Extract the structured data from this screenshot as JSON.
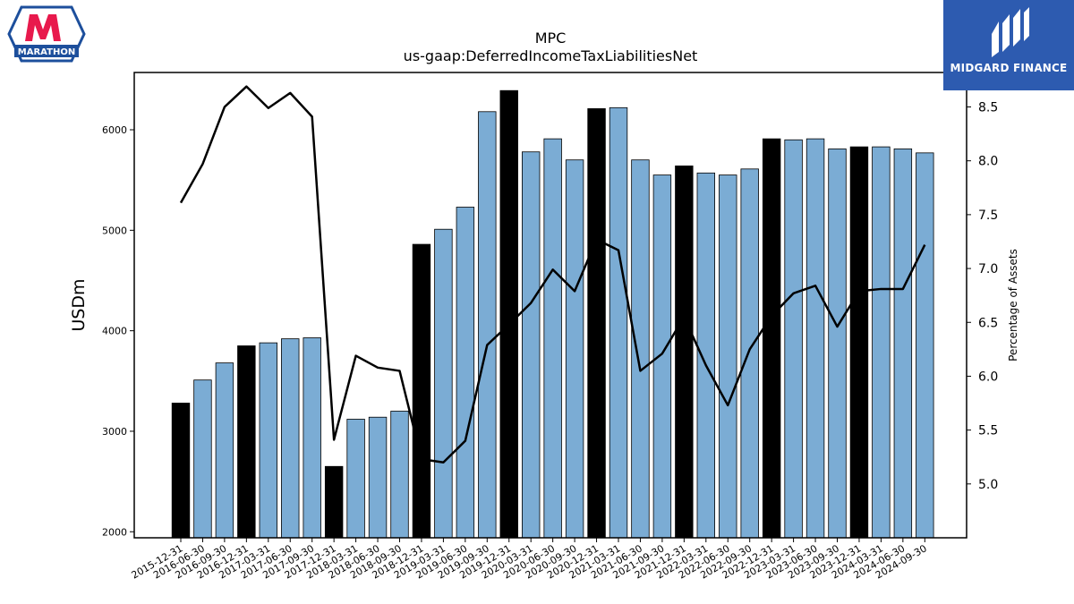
{
  "logos": {
    "left_brand_text": "MARATHON",
    "right_brand_text": "MIDGARD FINANCE"
  },
  "chart_data": {
    "type": "bar",
    "title": "MPC",
    "subtitle": "us-gaap:DeferredIncomeTaxLiabilitiesNet",
    "ylabel": "USDm",
    "y2label": "Percentage of Assets",
    "ylim": [
      1940,
      6570
    ],
    "y2lim": [
      4.5,
      8.82
    ],
    "yticks": [
      2000,
      3000,
      4000,
      5000,
      6000
    ],
    "y2ticks": [
      5.0,
      5.5,
      6.0,
      6.5,
      7.0,
      7.5,
      8.0,
      8.5
    ],
    "colors": {
      "annual": "#000000",
      "quarterly": "#7bacd4",
      "line": "#000000"
    },
    "categories": [
      "2015-12-31",
      "2016-06-30",
      "2016-09-30",
      "2016-12-31",
      "2017-03-31",
      "2017-06-30",
      "2017-09-30",
      "2017-12-31",
      "2018-03-31",
      "2018-06-30",
      "2018-09-30",
      "2018-12-31",
      "2019-03-31",
      "2019-06-30",
      "2019-09-30",
      "2019-12-31",
      "2020-03-31",
      "2020-06-30",
      "2020-09-30",
      "2020-12-31",
      "2021-03-31",
      "2021-06-30",
      "2021-09-30",
      "2021-12-31",
      "2022-03-31",
      "2022-06-30",
      "2022-09-30",
      "2022-12-31",
      "2023-03-31",
      "2023-06-30",
      "2023-09-30",
      "2023-12-31",
      "2024-03-31",
      "2024-06-30",
      "2024-09-30"
    ],
    "series": [
      {
        "values": [
          3280,
          3510,
          3680,
          3850,
          3880,
          3920,
          3930,
          2650,
          3120,
          3140,
          3200,
          4860,
          5010,
          5230,
          6180,
          6390,
          5780,
          5910,
          5700,
          6210,
          6220,
          5700,
          5550,
          5640,
          5570,
          5550,
          5610,
          5910,
          5900,
          5910,
          5810,
          5830,
          5830,
          5810,
          5770
        ],
        "annual": [
          true,
          false,
          false,
          true,
          false,
          false,
          false,
          true,
          false,
          false,
          false,
          true,
          false,
          false,
          false,
          true,
          false,
          false,
          false,
          true,
          false,
          false,
          false,
          true,
          false,
          false,
          false,
          true,
          false,
          false,
          false,
          true,
          false,
          false,
          false
        ]
      },
      {
        "values": [
          7.61,
          7.97,
          8.5,
          8.69,
          8.49,
          8.63,
          8.41,
          5.41,
          6.19,
          6.08,
          6.05,
          5.23,
          5.2,
          5.4,
          6.29,
          6.48,
          6.68,
          6.99,
          6.79,
          7.27,
          7.17,
          6.05,
          6.21,
          6.55,
          6.1,
          5.73,
          6.25,
          6.56,
          6.77,
          6.84,
          6.46,
          6.79,
          6.81,
          6.81,
          7.22
        ]
      }
    ]
  }
}
